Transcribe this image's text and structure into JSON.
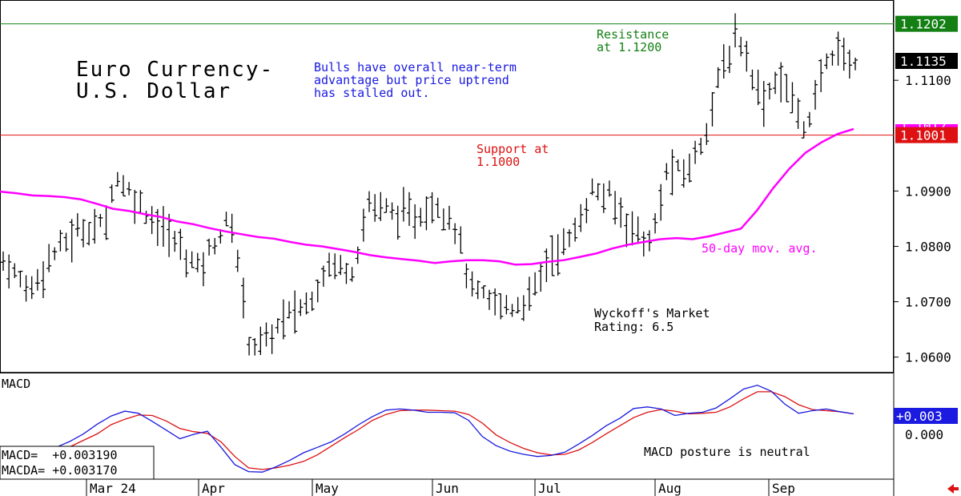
{
  "chart_data": [
    {
      "type": "ohlc",
      "title": "Euro Currency-",
      "subtitle": "U.S. Dollar",
      "ylim": [
        1.0572,
        1.1245
      ],
      "yticks": [
        1.06,
        1.07,
        1.08,
        1.09,
        1.11
      ],
      "ytick_labels": [
        "1.0600",
        "1.0700",
        "1.0800",
        "1.0900",
        "1.1100"
      ],
      "x_month_labels": [
        "Mar 24",
        "Apr",
        "May",
        "Jun",
        "Jul",
        "Aug",
        "Sep"
      ],
      "price_tags": {
        "resistance": "1.1202",
        "last": "1.1135",
        "ma_hidden": "1.1012",
        "support": "1.1001"
      },
      "lines": {
        "resistance": 1.1202,
        "support": 1.1001
      },
      "annotations": {
        "commentary": [
          "Bulls have overall near-term",
          "advantage but price uptrend",
          "has stalled out."
        ],
        "resistance": [
          "Resistance",
          "at 1.1200"
        ],
        "support": [
          "Support at",
          "1.1000"
        ],
        "ma_label": "50-day mov. avg.",
        "rating": [
          "Wyckoff's Market",
          "Rating: 6.5"
        ]
      },
      "moving_average_50": [
        1.0899,
        1.0896,
        1.0892,
        1.0891,
        1.0889,
        1.0885,
        1.0877,
        1.0868,
        1.0864,
        1.0858,
        1.0853,
        1.0845,
        1.084,
        1.0833,
        1.0827,
        1.0822,
        1.0817,
        1.0814,
        1.0808,
        1.0803,
        1.08,
        1.0795,
        1.079,
        1.0784,
        1.078,
        1.0777,
        1.0774,
        1.077,
        1.0773,
        1.0775,
        1.0775,
        1.0773,
        1.0767,
        1.0768,
        1.0772,
        1.0775,
        1.0781,
        1.0787,
        1.0796,
        1.0803,
        1.0808,
        1.0813,
        1.0815,
        1.0813,
        1.0818,
        1.0825,
        1.0832,
        1.0865,
        1.0905,
        1.094,
        1.0969,
        1.0988,
        1.1003,
        1.1012
      ]
    },
    {
      "type": "line",
      "title": "MACD",
      "ylim": [
        -0.0089,
        0.0107
      ],
      "ytick_labels": [
        "+0.003",
        "0.000"
      ],
      "readouts": [
        "MACD=  +0.003190",
        "MACDA= +0.003170"
      ],
      "annotation": "MACD posture is neutral",
      "series": [
        {
          "name": "MACD",
          "values": [
            -0.003,
            -0.0019,
            -0.0005,
            0.0013,
            0.0028,
            0.0037,
            0.0033,
            0.0018,
            0.0002,
            -0.0014,
            -0.0006,
            0.0,
            -0.003,
            -0.0062,
            -0.0075,
            -0.0076,
            -0.0066,
            -0.0054,
            -0.004,
            -0.003,
            -0.002,
            -0.0005,
            0.0012,
            0.0027,
            0.0039,
            0.0041,
            0.0039,
            0.0035,
            0.0035,
            0.0034,
            0.002,
            -0.001,
            -0.0027,
            -0.0037,
            -0.0043,
            -0.0047,
            -0.0045,
            -0.0039,
            -0.0024,
            -0.0008,
            0.001,
            0.0024,
            0.0042,
            0.0045,
            0.0041,
            0.0029,
            0.0033,
            0.0035,
            0.0043,
            0.006,
            0.0078,
            0.0085,
            0.0074,
            0.005,
            0.0033,
            0.0038,
            0.0041,
            0.0036,
            0.0032
          ]
        },
        {
          "name": "MACDA",
          "values": [
            -0.004,
            -0.0029,
            -0.0017,
            -0.0005,
            0.0012,
            0.0022,
            0.003,
            0.0029,
            0.0019,
            0.0005,
            -0.0001,
            -0.0004,
            -0.002,
            -0.0047,
            -0.0068,
            -0.0071,
            -0.0068,
            -0.0063,
            -0.0056,
            -0.0044,
            -0.0028,
            -0.0012,
            0.0003,
            0.002,
            0.0031,
            0.0038,
            0.0039,
            0.0039,
            0.0038,
            0.0037,
            0.0031,
            0.0015,
            -0.0007,
            -0.0021,
            -0.0032,
            -0.004,
            -0.0044,
            -0.0043,
            -0.0035,
            -0.0021,
            -0.0005,
            0.001,
            0.0025,
            0.0035,
            0.004,
            0.0037,
            0.0032,
            0.0033,
            0.0035,
            0.0045,
            0.006,
            0.0073,
            0.0073,
            0.0064,
            0.0049,
            0.004,
            0.0038,
            0.0036,
            0.0032
          ]
        }
      ]
    }
  ],
  "colors": {
    "bars": "#000000",
    "moving_average": "#ff00ff",
    "resistance": "#148014",
    "support": "#dd1111",
    "commentary": "#1a1ae0",
    "macd": "#1a1ae0",
    "macda": "#dd1111"
  }
}
